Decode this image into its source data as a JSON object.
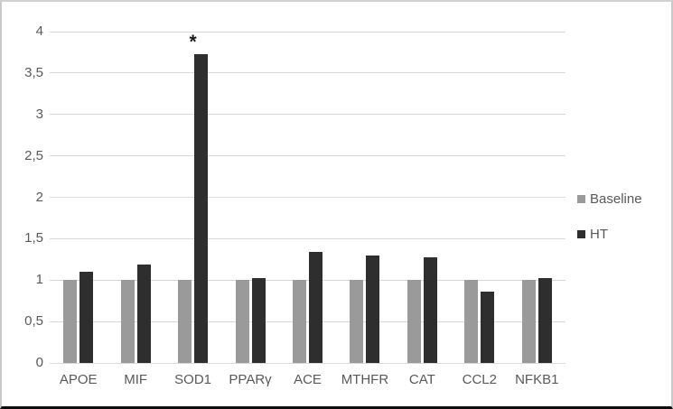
{
  "chart_data": {
    "type": "bar",
    "title": "",
    "xlabel": "",
    "ylabel": "",
    "categories": [
      "APOE",
      "MIF",
      "SOD1",
      "PPARγ",
      "ACE",
      "MTHFR",
      "CAT",
      "CCL2",
      "NFKB1"
    ],
    "series": [
      {
        "name": "Baseline",
        "color": "#9a9a9a",
        "values": [
          1.0,
          1.0,
          1.0,
          1.0,
          1.0,
          1.0,
          1.0,
          1.0,
          1.0
        ]
      },
      {
        "name": "HT",
        "color": "#2e2e2e",
        "values": [
          1.1,
          1.19,
          3.73,
          1.02,
          1.34,
          1.3,
          1.27,
          0.86,
          1.02
        ]
      }
    ],
    "ylim": [
      0,
      4
    ],
    "ytick_step": 0.5,
    "ytick_labels": [
      "0",
      "0,5",
      "1",
      "1,5",
      "2",
      "2,5",
      "3",
      "3,5",
      "4"
    ],
    "decimal_separator": ",",
    "grid": true,
    "legend_position": "right",
    "annotation": {
      "text": "*",
      "category": "SOD1",
      "series": "HT"
    }
  },
  "colors": {
    "background": "#ffffff",
    "gridline": "#d9d9d9",
    "axis_text": "#595959",
    "frame_border": "#c9c9c9",
    "frame_bottom": "#0d0d0d",
    "series_baseline": "#9a9a9a",
    "series_ht": "#2e2e2e"
  }
}
